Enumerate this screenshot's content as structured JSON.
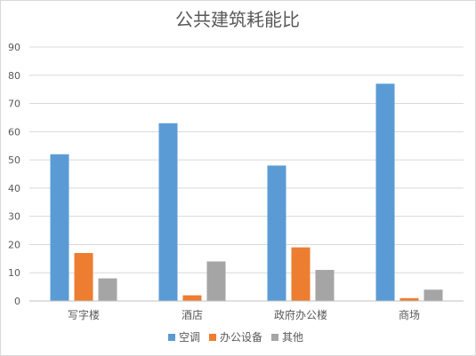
{
  "chart_data": {
    "type": "bar",
    "title": "公共建筑耗能比",
    "categories": [
      "写字楼",
      "酒店",
      "政府办公楼",
      "商场"
    ],
    "series": [
      {
        "name": "空调",
        "color": "#5b9bd5",
        "values": [
          52,
          63,
          48,
          77
        ]
      },
      {
        "name": "办公设备",
        "color": "#ed7d31",
        "values": [
          17,
          2,
          19,
          1
        ]
      },
      {
        "name": "其他",
        "color": "#a5a5a5",
        "values": [
          8,
          14,
          11,
          4
        ]
      }
    ],
    "ylim": [
      0,
      90
    ],
    "yticks": [
      0,
      10,
      20,
      30,
      40,
      50,
      60,
      70,
      80,
      90
    ],
    "grid": true,
    "legend_position": "bottom"
  }
}
